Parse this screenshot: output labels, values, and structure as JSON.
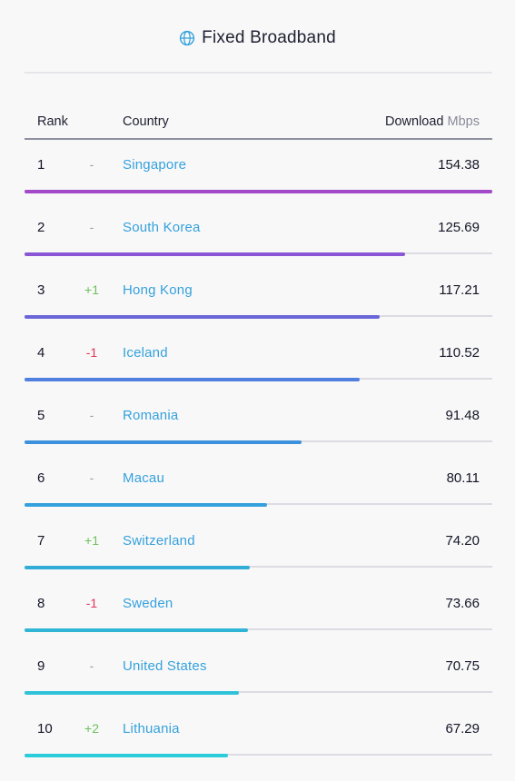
{
  "header": {
    "title": "Fixed Broadband",
    "icon": "globe-icon",
    "icon_color": "#35a1dc"
  },
  "columns": {
    "rank": "Rank",
    "country": "Country",
    "download": "Download",
    "unit": "Mbps"
  },
  "colors": {
    "country_link": "#35a1dc",
    "change_up": "#6cc15a",
    "change_down": "#e03554",
    "change_flat": "#9b9ca8",
    "bar_gradient": [
      "#a24ac8",
      "#8a56d6",
      "#6a66d8",
      "#507fe0",
      "#3b91dc",
      "#35a1dc",
      "#31add8",
      "#30b5d6",
      "#2fc2d8",
      "#2ccdda"
    ]
  },
  "chart_data": {
    "type": "bar",
    "orientation": "horizontal",
    "title": "Fixed Broadband",
    "value_label": "Download Mbps",
    "xlim": [
      0,
      154.38
    ],
    "rows": [
      {
        "rank": "1",
        "change": "-",
        "country": "Singapore",
        "value": 154.38,
        "display": "154.38"
      },
      {
        "rank": "2",
        "change": "-",
        "country": "South Korea",
        "value": 125.69,
        "display": "125.69"
      },
      {
        "rank": "3",
        "change": "+1",
        "country": "Hong Kong",
        "value": 117.21,
        "display": "117.21"
      },
      {
        "rank": "4",
        "change": "-1",
        "country": "Iceland",
        "value": 110.52,
        "display": "110.52"
      },
      {
        "rank": "5",
        "change": "-",
        "country": "Romania",
        "value": 91.48,
        "display": "91.48"
      },
      {
        "rank": "6",
        "change": "-",
        "country": "Macau",
        "value": 80.11,
        "display": "80.11"
      },
      {
        "rank": "7",
        "change": "+1",
        "country": "Switzerland",
        "value": 74.2,
        "display": "74.20"
      },
      {
        "rank": "8",
        "change": "-1",
        "country": "Sweden",
        "value": 73.66,
        "display": "73.66"
      },
      {
        "rank": "9",
        "change": "-",
        "country": "United States",
        "value": 70.75,
        "display": "70.75"
      },
      {
        "rank": "10",
        "change": "+2",
        "country": "Lithuania",
        "value": 67.29,
        "display": "67.29"
      }
    ]
  }
}
